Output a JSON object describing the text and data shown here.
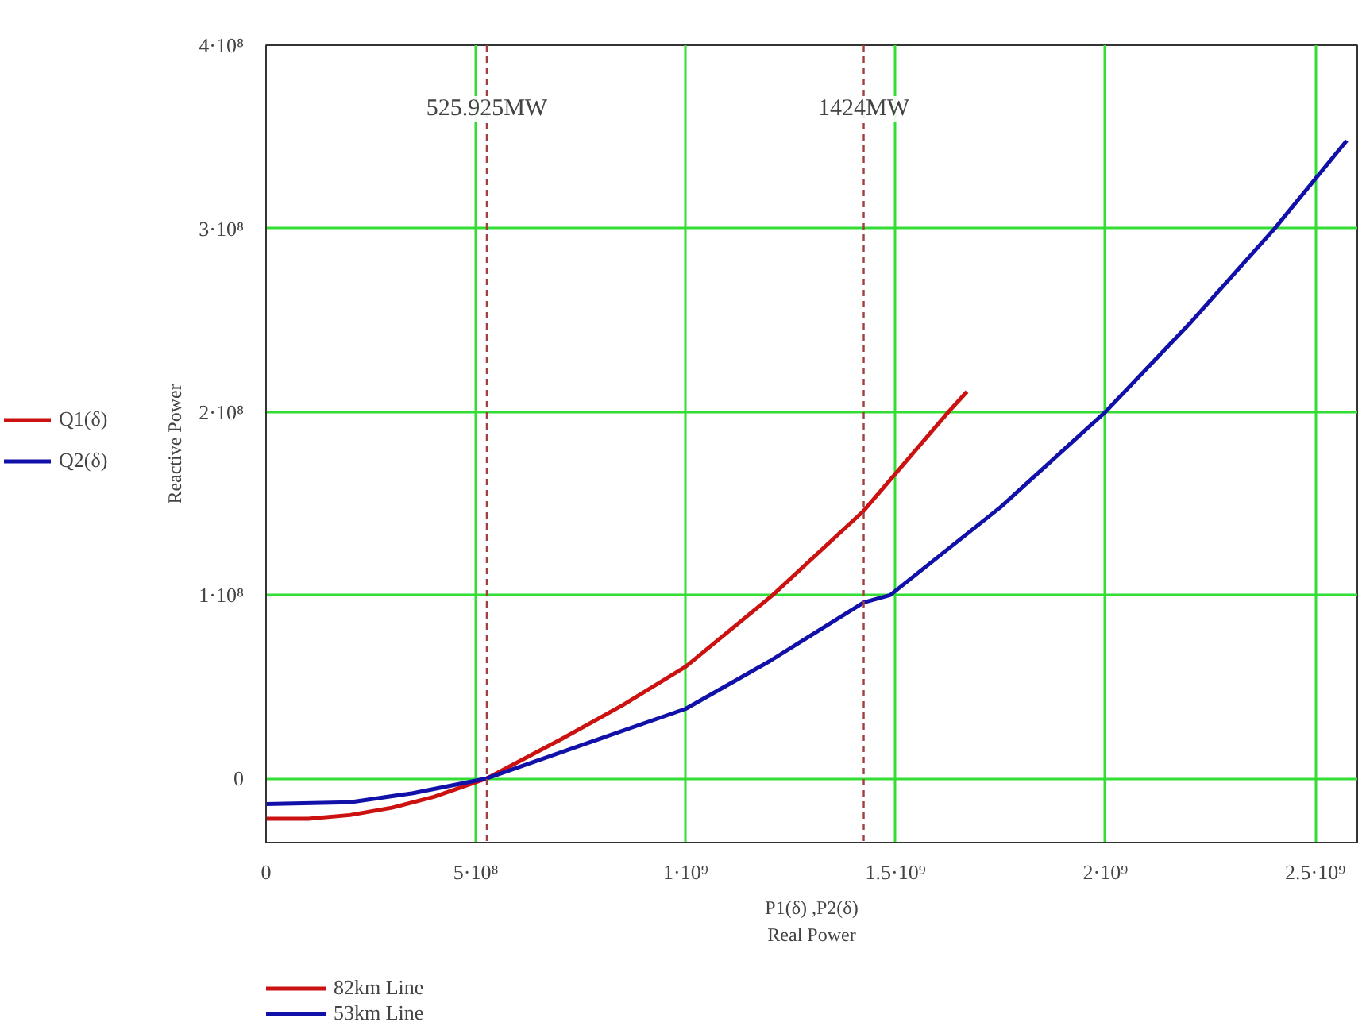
{
  "chart_data": {
    "type": "line",
    "xlabel": "P1(δ) ,P2(δ)\nReal Power",
    "ylabel": "Reactive Power",
    "annotations": [
      "Q1(δ)",
      "Q2(δ)"
    ],
    "series": [
      {
        "name": "82km Line",
        "color": "#cc1111",
        "x": [
          0,
          100000000,
          200000000,
          300000000,
          400000000,
          525925000,
          700000000,
          850000000,
          1000000000,
          1207000000,
          1424000000,
          1626000000,
          1670000000
        ],
        "values": [
          -22000000,
          -22000000,
          -20000000,
          -16000000,
          -10000000,
          0,
          21000000,
          40000000,
          61000000,
          100000000,
          146000000,
          200000000,
          211000000
        ]
      },
      {
        "name": "53km Line",
        "color": "#1111aa",
        "x": [
          0,
          200000000,
          350000000,
          525925000,
          750000000,
          1000000000,
          1200000000,
          1424000000,
          1487000000,
          1750000000,
          2000000000,
          2200000000,
          2403000000,
          2575000000
        ],
        "values": [
          -14000000,
          -13000000,
          -8000000,
          0,
          18000000,
          38000000,
          64000000,
          96000000,
          100000000,
          148000000,
          200000000,
          248000000,
          300000000,
          348000000
        ]
      }
    ],
    "xlim": [
      0,
      2600000000
    ],
    "ylim": [
      -35000000,
      400000000
    ],
    "xticks": [
      0,
      {
        "value": 500000000,
        "label": "5·10⁸"
      },
      {
        "value": 1000000000,
        "label": "1·10⁹"
      },
      {
        "value": 1500000000,
        "label": "1.5·10⁹"
      },
      {
        "value": 2000000000,
        "label": "2·10⁹"
      },
      {
        "value": 2500000000,
        "label": "2.5·10⁹"
      }
    ],
    "yticks": [
      0,
      {
        "value": 100000000,
        "label": "1·10⁸"
      },
      {
        "value": 200000000,
        "label": "2·10⁸"
      },
      {
        "value": 300000000,
        "label": "3·10⁸"
      },
      {
        "value": 400000000,
        "label": "4·10⁸"
      }
    ],
    "ref_lines": [
      {
        "axis": "x",
        "value": 525925000,
        "label": "525.925MW",
        "color": "#a04040",
        "line_style": "dashed"
      },
      {
        "axis": "x",
        "value": 1424000000,
        "label": "1424MW",
        "color": "#a04040",
        "line_style": "dashed"
      }
    ],
    "grid": true,
    "legend": "bottom left",
    "line_style": "solid",
    "marker": "none"
  }
}
